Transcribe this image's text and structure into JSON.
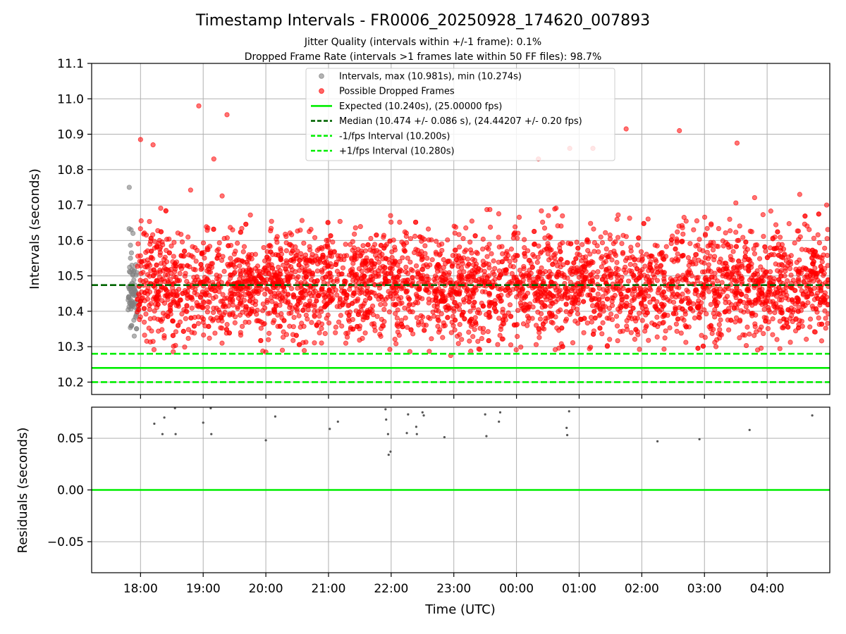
{
  "chart_data": [
    {
      "type": "scatter",
      "title": "Timestamp Intervals - FR0006_20250928_174620_007893",
      "subtitle_1": "Jitter Quality (intervals within +/-1 frame): 0.1%",
      "subtitle_2": "Dropped Frame Rate (intervals >1 frames late within 50 FF files): 98.7%",
      "xlabel": "",
      "ylabel": "Intervals (seconds)",
      "x_unit": "hours since 17:00 UTC",
      "xlim": [
        0.22,
        12.0
      ],
      "ylim": [
        10.165,
        11.1
      ],
      "yticks": [
        10.2,
        10.3,
        10.4,
        10.5,
        10.6,
        10.7,
        10.8,
        10.9,
        11.0,
        11.1
      ],
      "ytick_labels": [
        "10.2",
        "10.3",
        "10.4",
        "10.5",
        "10.6",
        "10.7",
        "10.8",
        "10.9",
        "11.0",
        "11.1"
      ],
      "xticks": [
        1,
        2,
        3,
        4,
        5,
        6,
        7,
        8,
        9,
        10,
        11
      ],
      "grid": true,
      "legend_position": "top-center",
      "legend": [
        {
          "label": "Intervals, max (10.981s), min (10.274s)",
          "kind": "marker",
          "color": "#808080"
        },
        {
          "label": "Possible Dropped Frames",
          "kind": "marker",
          "color": "#ff0000"
        },
        {
          "label": "Expected (10.240s), (25.00000 fps)",
          "kind": "solid",
          "color": "#00ee00"
        },
        {
          "label": "Median (10.474 +/- 0.086 s), (24.44207 +/- 0.20 fps)",
          "kind": "dashed",
          "color": "#006400"
        },
        {
          "label": "-1/fps Interval (10.200s)",
          "kind": "dashed",
          "color": "#00ee00"
        },
        {
          "label": "+1/fps Interval (10.280s)",
          "kind": "dashed",
          "color": "#00ee00"
        }
      ],
      "hlines": [
        {
          "name": "expected",
          "y": 10.24,
          "style": "solid",
          "color": "#00ee00"
        },
        {
          "name": "median",
          "y": 10.474,
          "style": "dashed",
          "color": "#006400"
        },
        {
          "name": "minus-fps",
          "y": 10.2,
          "style": "dashed",
          "color": "#00ee00"
        },
        {
          "name": "plus-fps",
          "y": 10.28,
          "style": "dashed",
          "color": "#00ee00"
        }
      ],
      "series": [
        {
          "name": "Intervals",
          "color": "#808080",
          "x_range": [
            0.8,
            0.95
          ],
          "median": 10.45,
          "spread": 0.06,
          "count": 70,
          "points": [
            [
              0.82,
              10.75
            ],
            [
              0.85,
              10.63
            ],
            [
              0.88,
              10.62
            ],
            [
              0.84,
              10.55
            ],
            [
              0.9,
              10.33
            ],
            [
              0.86,
              10.36
            ]
          ]
        },
        {
          "name": "Possible Dropped Frames",
          "color": "#ff0000",
          "x_range": [
            0.95,
            11.98
          ],
          "median": 10.474,
          "spread": 0.086,
          "count": 3800,
          "points": [
            [
              1.93,
              10.98
            ],
            [
              2.38,
              10.955
            ],
            [
              8.75,
              10.915
            ],
            [
              9.6,
              10.91
            ],
            [
              3.0,
              10.285
            ],
            [
              5.95,
              10.275
            ],
            [
              10.52,
              10.875
            ],
            [
              1.0,
              10.885
            ],
            [
              1.2,
              10.87
            ],
            [
              2.17,
              10.83
            ],
            [
              7.35,
              10.83
            ],
            [
              7.85,
              10.86
            ],
            [
              8.22,
              10.86
            ],
            [
              11.52,
              10.73
            ],
            [
              11.95,
              10.7
            ]
          ]
        }
      ]
    },
    {
      "type": "scatter",
      "xlabel": "Time (UTC)",
      "ylabel": "Residuals (seconds)",
      "x_unit": "hours since 17:00 UTC",
      "xlim": [
        0.22,
        12.0
      ],
      "ylim": [
        -0.08,
        0.08
      ],
      "yticks": [
        -0.05,
        0.0,
        0.05
      ],
      "ytick_labels": [
        "−0.05",
        "0.00",
        "0.05"
      ],
      "xticks": [
        1,
        2,
        3,
        4,
        5,
        6,
        7,
        8,
        9,
        10,
        11
      ],
      "xtick_labels": [
        "18:00",
        "19:00",
        "20:00",
        "21:00",
        "22:00",
        "23:00",
        "00:00",
        "01:00",
        "02:00",
        "03:00",
        "04:00"
      ],
      "grid": true,
      "zero_line_color": "#00ee00",
      "series": [
        {
          "name": "Residuals",
          "color": "#555555",
          "points": [
            [
              1.22,
              0.064
            ],
            [
              1.35,
              0.054
            ],
            [
              1.38,
              0.07
            ],
            [
              1.55,
              0.079
            ],
            [
              1.56,
              0.054
            ],
            [
              2.0,
              0.065
            ],
            [
              2.12,
              0.079
            ],
            [
              2.13,
              0.054
            ],
            [
              3.0,
              0.048
            ],
            [
              3.15,
              0.071
            ],
            [
              4.02,
              0.059
            ],
            [
              4.15,
              0.066
            ],
            [
              4.91,
              0.078
            ],
            [
              4.92,
              0.068
            ],
            [
              4.95,
              0.054
            ],
            [
              4.96,
              0.034
            ],
            [
              4.99,
              0.037
            ],
            [
              5.25,
              0.055
            ],
            [
              5.27,
              0.073
            ],
            [
              5.4,
              0.061
            ],
            [
              5.41,
              0.054
            ],
            [
              5.5,
              0.075
            ],
            [
              5.52,
              0.072
            ],
            [
              5.85,
              0.051
            ],
            [
              6.5,
              0.073
            ],
            [
              6.52,
              0.052
            ],
            [
              6.72,
              0.066
            ],
            [
              6.74,
              0.075
            ],
            [
              7.8,
              0.06
            ],
            [
              7.81,
              0.053
            ],
            [
              7.84,
              0.076
            ],
            [
              9.25,
              0.047
            ],
            [
              9.92,
              0.049
            ],
            [
              10.72,
              0.058
            ],
            [
              11.72,
              0.072
            ]
          ]
        }
      ]
    }
  ]
}
